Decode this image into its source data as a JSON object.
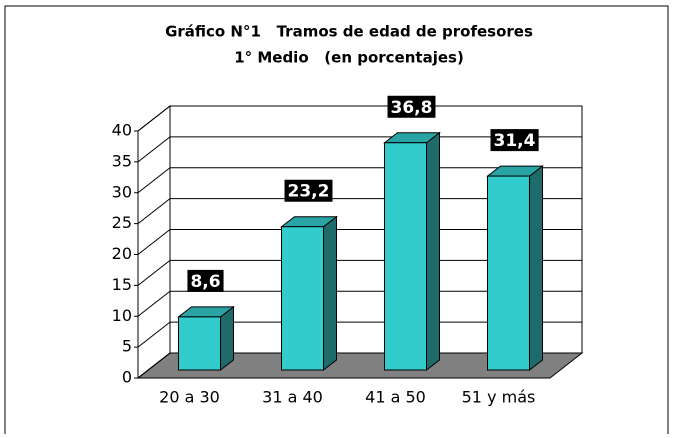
{
  "chart_data": {
    "type": "bar3d",
    "title": "Gráfico N°1   Tramos de edad de profesores",
    "subtitle": "1° Medio   (en porcentajes)",
    "categories": [
      "20 a 30",
      "31 a 40",
      "41 a 50",
      "51 y más"
    ],
    "values": [
      8.6,
      23.2,
      36.8,
      31.4
    ],
    "value_labels": [
      "8,6",
      "23,2",
      "36,8",
      "31,4"
    ],
    "color": "#33cccc",
    "ylim": [
      0,
      40
    ],
    "yticks": [
      0,
      5,
      10,
      15,
      20,
      25,
      30,
      35,
      40
    ],
    "grid": true
  }
}
